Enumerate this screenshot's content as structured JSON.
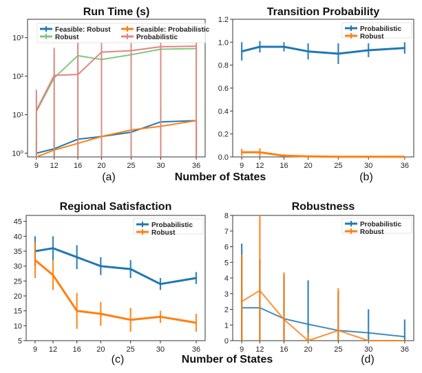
{
  "figure": {
    "shared_xlabel": "Number of States"
  },
  "chart_data": [
    {
      "id": "a",
      "type": "line",
      "title": "Run Time (s)",
      "caption": "(a)",
      "yscale": "log",
      "ylim": [
        0.8,
        3000
      ],
      "y_ticks": [
        "10⁰",
        "10¹",
        "10²",
        "10³"
      ],
      "y_tick_values": [
        1,
        10,
        100,
        1000
      ],
      "x": [
        9,
        12,
        16,
        20,
        25,
        30,
        36
      ],
      "x_ticks": [
        "9",
        "12",
        "16",
        "20",
        "25",
        "30",
        "36"
      ],
      "legend_position": "top",
      "series": [
        {
          "name": "Feasible: Robust",
          "color": "#1f77b4",
          "values": [
            1,
            1.3,
            2.3,
            2.7,
            3.5,
            6.5,
            7
          ],
          "err_low": [
            0.8,
            0.8,
            0.8,
            0.8,
            0.8,
            0.8,
            0.8
          ],
          "err_high": [
            2,
            2,
            4.5,
            2.7,
            6,
            15,
            7
          ]
        },
        {
          "name": "Feasible: Probabilistic",
          "color": "#ff7f0e",
          "values": [
            0.8,
            1.2,
            1.8,
            2.7,
            4,
            5,
            7
          ],
          "err_low": [
            0.8,
            0.8,
            0.8,
            0.8,
            0.8,
            0.8,
            0.8
          ],
          "err_high": [
            0.8,
            1.2,
            1.8,
            2.7,
            4,
            5,
            7
          ]
        },
        {
          "name": "Robust",
          "color": "#7fc97f",
          "values": [
            12,
            90,
            340,
            270,
            360,
            500,
            520
          ],
          "err_low": [
            0.8,
            0.8,
            0.8,
            0.8,
            0.8,
            0.8,
            0.8
          ],
          "err_high": [
            40,
            500,
            1200,
            1300,
            1300,
            1400,
            1300
          ]
        },
        {
          "name": "Probabilistic",
          "color": "#e88080",
          "values": [
            13,
            105,
            110,
            420,
            460,
            580,
            600
          ],
          "err_low": [
            0.8,
            0.8,
            0.8,
            0.8,
            0.8,
            0.8,
            0.8
          ],
          "err_high": [
            45,
            550,
            1100,
            1300,
            1300,
            1400,
            1300
          ]
        }
      ]
    },
    {
      "id": "b",
      "type": "line",
      "title": "Transition Probability",
      "caption": "(b)",
      "ylim": [
        0,
        1.2
      ],
      "y_ticks": [
        "0.0",
        "0.2",
        "0.4",
        "0.6",
        "0.8",
        "1.0",
        "1.2"
      ],
      "y_tick_values": [
        0,
        0.2,
        0.4,
        0.6,
        0.8,
        1.0,
        1.2
      ],
      "x": [
        9,
        12,
        16,
        20,
        25,
        30,
        36
      ],
      "x_ticks": [
        "9",
        "12",
        "16",
        "20",
        "25",
        "30",
        "36"
      ],
      "legend_position": "top-right",
      "series": [
        {
          "name": "Probabilistic",
          "color": "#1f77b4",
          "values": [
            0.92,
            0.96,
            0.96,
            0.92,
            0.9,
            0.93,
            0.95
          ],
          "err": [
            0.08,
            0.05,
            0.04,
            0.07,
            0.09,
            0.06,
            0.05
          ]
        },
        {
          "name": "Robust",
          "color": "#ff7f0e",
          "values": [
            0.04,
            0.04,
            0.01,
            0.005,
            0.002,
            0.001,
            0.001
          ],
          "err": [
            0.03,
            0.035,
            0.015,
            0.008,
            0.003,
            0.002,
            0.002
          ]
        }
      ]
    },
    {
      "id": "c",
      "type": "line",
      "title": "Regional Satisfaction",
      "caption": "(c)",
      "ylim": [
        5,
        47
      ],
      "y_ticks": [
        "5",
        "10",
        "15",
        "20",
        "25",
        "30",
        "35",
        "40",
        "45"
      ],
      "y_tick_values": [
        5,
        10,
        15,
        20,
        25,
        30,
        35,
        40,
        45
      ],
      "x": [
        9,
        12,
        16,
        20,
        25,
        30,
        36
      ],
      "x_ticks": [
        "9",
        "12",
        "16",
        "20",
        "25",
        "30",
        "36"
      ],
      "legend_position": "top-right",
      "series": [
        {
          "name": "Probabilistic",
          "color": "#1f77b4",
          "values": [
            35,
            36,
            33,
            30,
            29,
            24,
            26
          ],
          "err": [
            5,
            4,
            4,
            3,
            3,
            2,
            2
          ]
        },
        {
          "name": "Robust",
          "color": "#ff7f0e",
          "values": [
            32,
            27,
            15,
            14,
            12,
            13,
            11
          ],
          "err": [
            6,
            5,
            6,
            4,
            4,
            2,
            3
          ]
        }
      ]
    },
    {
      "id": "d",
      "type": "line",
      "title": "Robustness",
      "caption": "(d)",
      "ylim": [
        0,
        8
      ],
      "y_ticks": [
        "0",
        "1",
        "2",
        "3",
        "4",
        "5",
        "6",
        "7",
        "8"
      ],
      "y_tick_values": [
        0,
        1,
        2,
        3,
        4,
        5,
        6,
        7,
        8
      ],
      "x": [
        9,
        12,
        16,
        20,
        25,
        30,
        36
      ],
      "x_ticks": [
        "9",
        "12",
        "16",
        "20",
        "25",
        "30",
        "36"
      ],
      "legend_position": "top-right",
      "series": [
        {
          "name": "Probabilistic",
          "color": "#1f77b4",
          "values": [
            2.1,
            2.1,
            1.4,
            1.05,
            0.65,
            0.5,
            0.25
          ],
          "err": [
            4.1,
            3.1,
            2.8,
            2.8,
            2.5,
            1.5,
            1.1
          ]
        },
        {
          "name": "Robust",
          "color": "#ff7f0e",
          "values": [
            2.5,
            3.2,
            1.35,
            0,
            0.65,
            0,
            0
          ],
          "err": [
            3,
            5,
            3,
            0.5,
            2.7,
            0,
            0
          ]
        }
      ]
    }
  ]
}
